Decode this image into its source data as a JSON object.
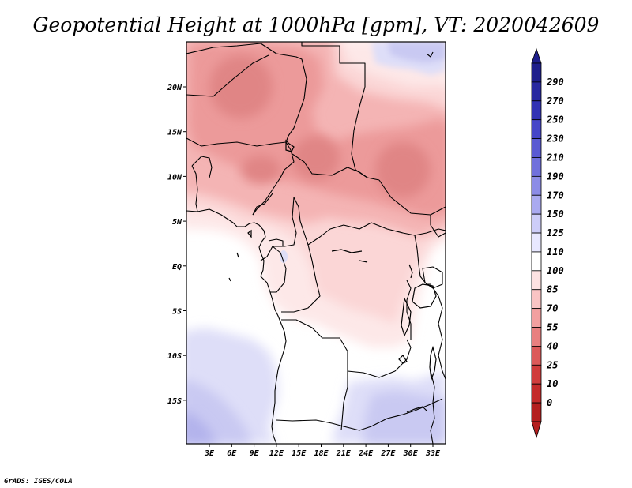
{
  "map": {
    "title": "Geopotential Height at 1000hPa [gpm], VT: 2020042609",
    "variable": "Geopotential Height",
    "level": "1000hPa",
    "units": "gpm",
    "valid_time": "2020042609",
    "region": "Central Africa",
    "x_axis_labels": [
      "3E",
      "6E",
      "9E",
      "12E",
      "15E",
      "18E",
      "21E",
      "24E",
      "27E",
      "30E",
      "33E"
    ],
    "y_axis_labels": [
      "20N",
      "15N",
      "10N",
      "5N",
      "EQ",
      "5S",
      "10S",
      "15S"
    ],
    "credit": "GrADS: IGES/COLA"
  },
  "legend": {
    "levels": [
      {
        "label": "290",
        "color": "#1e1e8c"
      },
      {
        "label": "270",
        "color": "#2828a0"
      },
      {
        "label": "250",
        "color": "#3232b4"
      },
      {
        "label": "230",
        "color": "#4646c8"
      },
      {
        "label": "210",
        "color": "#5a5ad2"
      },
      {
        "label": "190",
        "color": "#7070dc"
      },
      {
        "label": "170",
        "color": "#8c8ce6"
      },
      {
        "label": "150",
        "color": "#aaaaf0"
      },
      {
        "label": "125",
        "color": "#cdcdf8"
      },
      {
        "label": "110",
        "color": "#e8e8ff"
      },
      {
        "label": "100",
        "color": "#ffffff"
      },
      {
        "label": "85",
        "color": "#fde2e2"
      },
      {
        "label": "70",
        "color": "#f9c4c4"
      },
      {
        "label": "55",
        "color": "#f2a0a0"
      },
      {
        "label": "40",
        "color": "#e88080"
      },
      {
        "label": "25",
        "color": "#dc5a5a"
      },
      {
        "label": "10",
        "color": "#d03c3c"
      },
      {
        "label": "0",
        "color": "#c42a2a"
      },
      {
        "label": "",
        "color": "#b41e1e"
      }
    ]
  },
  "colors": {
    "darkest_red": "#e08585",
    "dark_red": "#ec9a9a",
    "mid_red": "#f4b4b4",
    "light_red": "#fbd6d6",
    "pale_red": "#fde8e8",
    "pale_blue": "#dedef8",
    "light_blue": "#c9c9f2",
    "mid_blue": "#b3b3ec"
  }
}
